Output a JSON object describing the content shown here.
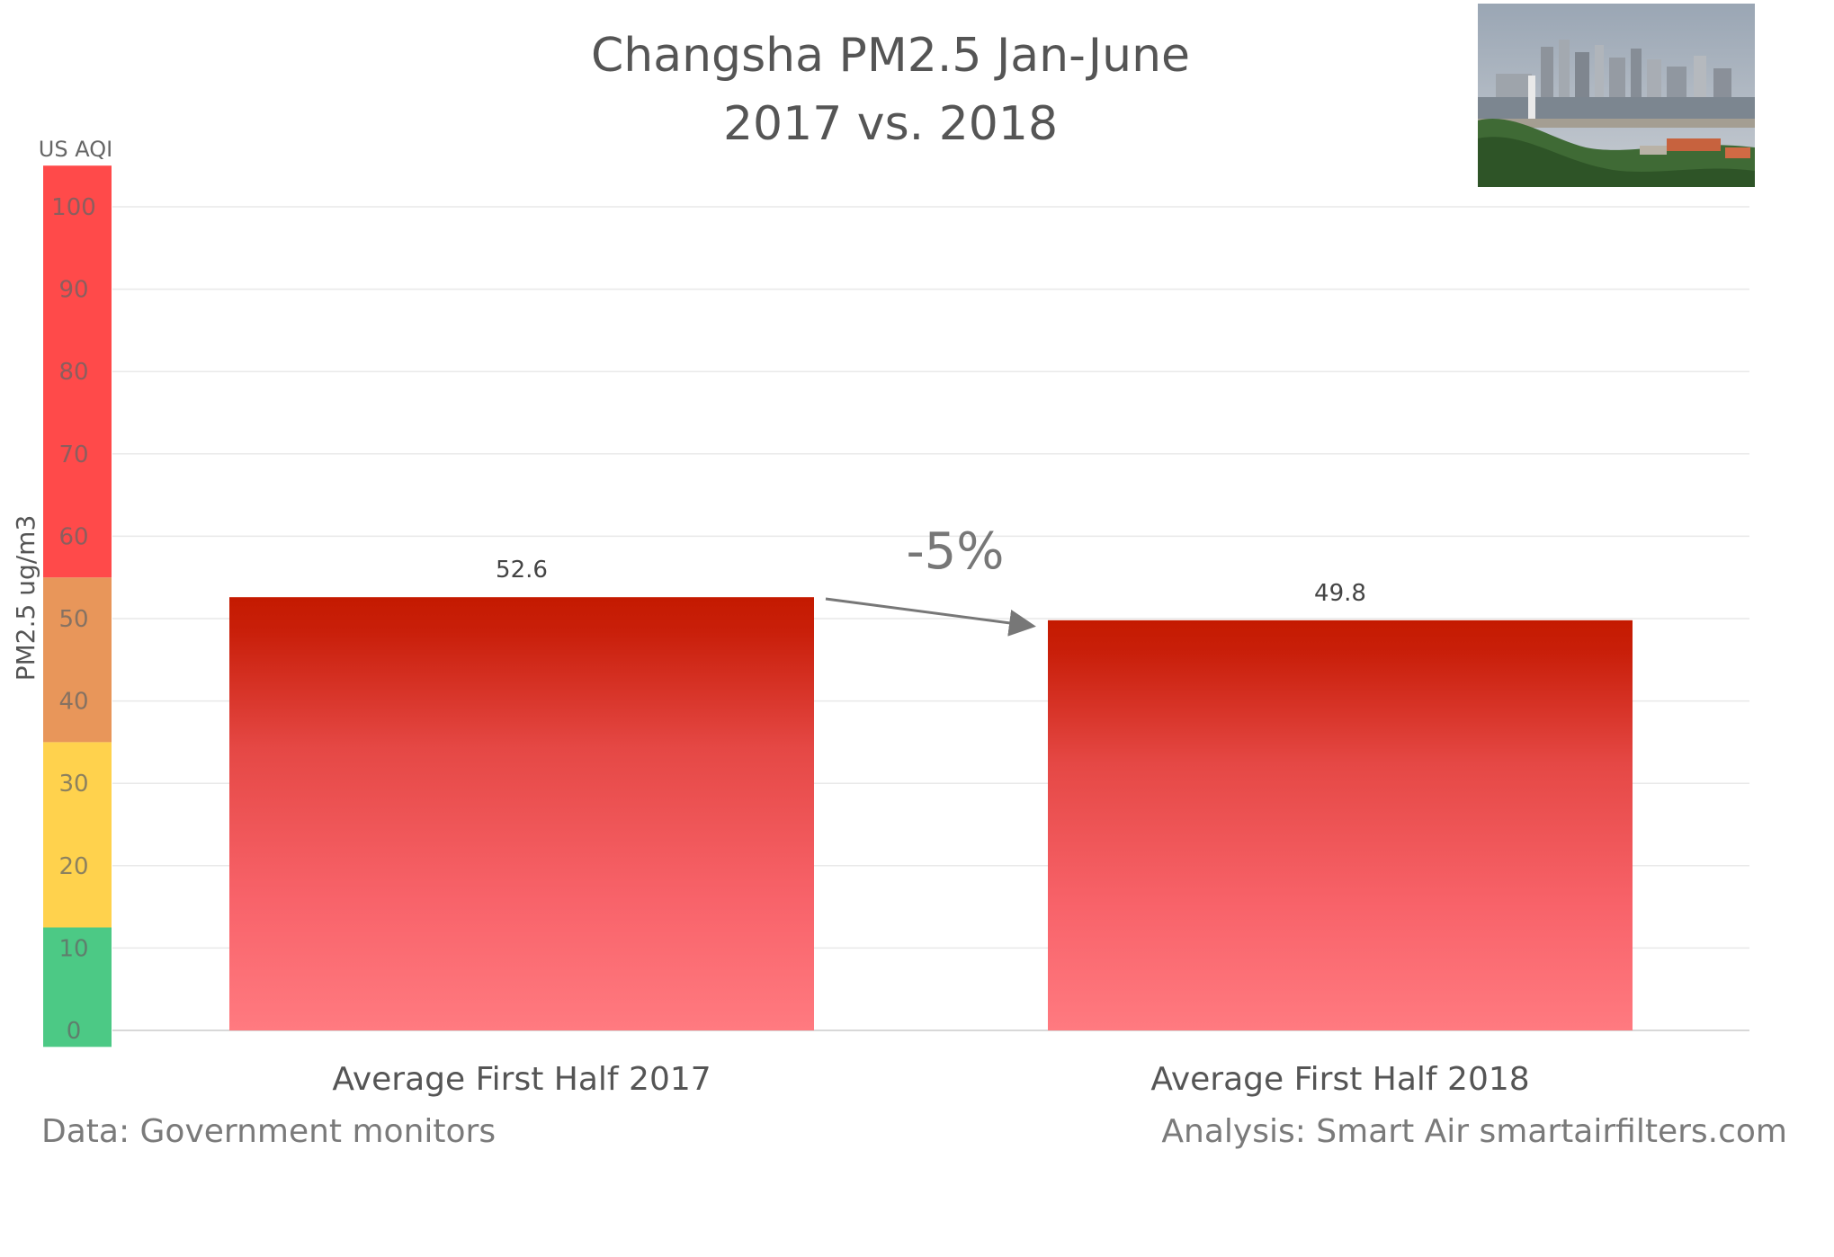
{
  "title_line1": "Changsha PM2.5 Jan-June",
  "title_line2": "2017 vs. 2018",
  "aqi_label": "US AQI",
  "footer_left": "Data: Government monitors",
  "footer_right": "Analysis: Smart Air smartairfilters.com",
  "change_label": "-5%",
  "colors": {
    "aqi_red": "#ff4a4a",
    "aqi_orange": "#e8965a",
    "aqi_yellow": "#ffd24d",
    "aqi_green": "#4cc985",
    "bar_top": "#c41a00",
    "bar_bottom": "#ff7a80",
    "grid": "#e9e9e9",
    "arrow": "#777777"
  },
  "aqi_bands": [
    {
      "name": "green",
      "from": -2,
      "to": 12.5
    },
    {
      "name": "yellow",
      "from": 12.5,
      "to": 35
    },
    {
      "name": "orange",
      "from": 35,
      "to": 55
    },
    {
      "name": "red",
      "from": 55,
      "to": 105
    }
  ],
  "chart_data": {
    "type": "bar",
    "categories": [
      "Average First Half 2017",
      "Average First Half 2018"
    ],
    "values": [
      52.6,
      49.8
    ],
    "data_labels": [
      "52.6",
      "49.8"
    ],
    "ylabel": "PM2.5 ug/m3",
    "ylim": [
      0,
      100
    ],
    "yticks": [
      0,
      10,
      20,
      30,
      40,
      50,
      60,
      70,
      80,
      90,
      100
    ],
    "grid": true
  }
}
